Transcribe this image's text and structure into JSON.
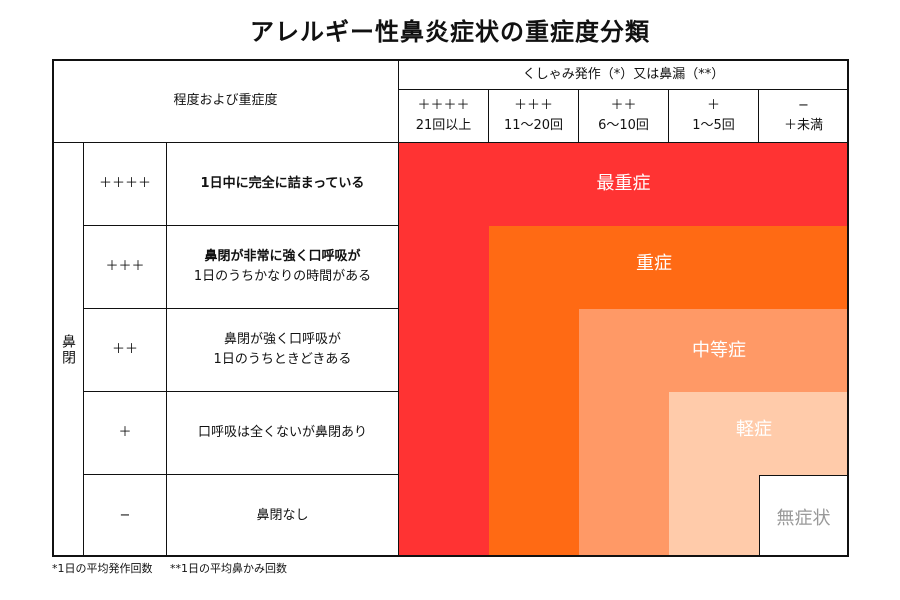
{
  "title": "アレルギー性鼻炎症状の重症度分類",
  "header": {
    "degree_label": "程度および重症度",
    "sneeze_label": "くしゃみ発作（*）又は鼻漏（**）",
    "columns": [
      {
        "mark": "＋＋＋＋",
        "range": "21回以上"
      },
      {
        "mark": "＋＋＋",
        "range": "11〜20回"
      },
      {
        "mark": "＋＋",
        "range": "6〜10回"
      },
      {
        "mark": "＋",
        "range": "1〜5回"
      },
      {
        "mark": "−",
        "range": "＋未満"
      }
    ]
  },
  "nasal_label": "鼻閉",
  "rows": [
    {
      "mark": "＋＋＋＋",
      "desc_line1": "1日中に完全に詰まっている",
      "desc_line2": ""
    },
    {
      "mark": "＋＋＋",
      "desc_line1": "鼻閉が非常に強く口呼吸が",
      "desc_line2": "1日のうちかなりの時間がある"
    },
    {
      "mark": "＋＋",
      "desc_line1": "鼻閉が強く口呼吸が",
      "desc_line2": "1日のうちときどきある"
    },
    {
      "mark": "＋",
      "desc_line1": "口呼吸は全くないが鼻閉あり",
      "desc_line2": ""
    },
    {
      "mark": "−",
      "desc_line1": "鼻閉なし",
      "desc_line2": ""
    }
  ],
  "severity": [
    {
      "label": "最重症",
      "color": "#ff3333",
      "text_color": "#ffffff"
    },
    {
      "label": "重症",
      "color": "#ff6a14",
      "text_color": "#ffffff"
    },
    {
      "label": "中等症",
      "color": "#ff9966",
      "text_color": "#ffffff"
    },
    {
      "label": "軽症",
      "color": "#ffcbaa",
      "text_color": "#ffffff"
    },
    {
      "label": "無症状",
      "color": "#ffffff",
      "text_color": "#999999"
    }
  ],
  "footnotes": [
    "*1日の平均発作回数",
    "**1日の平均鼻かみ回数"
  ]
}
